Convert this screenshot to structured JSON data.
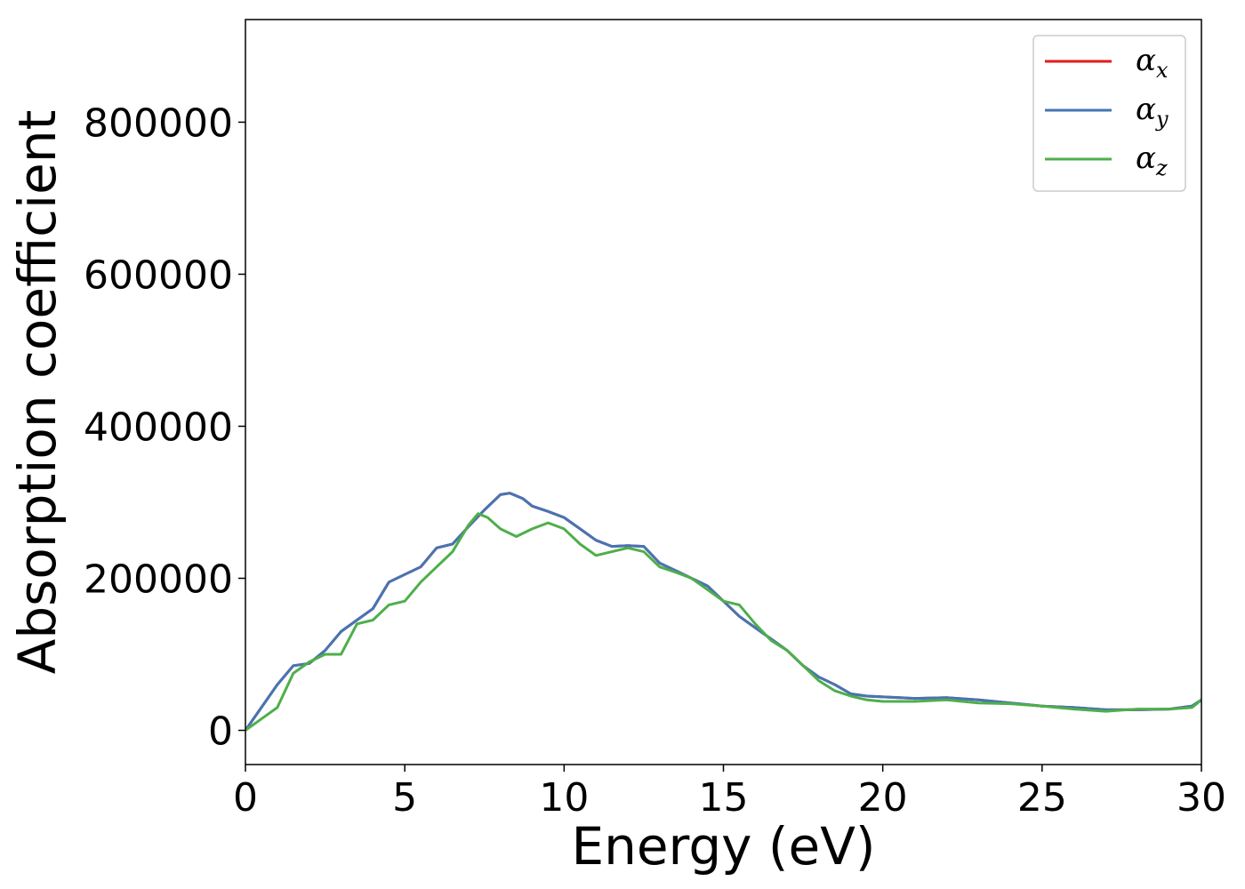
{
  "chart_data": {
    "type": "line",
    "title": "",
    "xlabel": "Energy (eV)",
    "ylabel": "Absorption coefficient",
    "xlim": [
      0,
      30
    ],
    "ylim": [
      -45000,
      935000
    ],
    "xticks": [
      0,
      5,
      10,
      15,
      20,
      25,
      30
    ],
    "xtick_labels": [
      "0",
      "5",
      "10",
      "15",
      "20",
      "25",
      "30"
    ],
    "yticks": [
      0,
      200000,
      400000,
      600000,
      800000
    ],
    "ytick_labels": [
      "0",
      "200000",
      "400000",
      "600000",
      "800000"
    ],
    "grid": false,
    "legend_position": "top-right",
    "series": [
      {
        "name": "α",
        "subscript": "x",
        "color": "#e41a1c",
        "x": [
          0,
          0.5,
          1,
          1.5,
          2,
          2.5,
          3,
          3.5,
          4,
          4.5,
          5,
          5.5,
          6,
          6.5,
          7,
          7.5,
          8,
          8.3,
          8.7,
          9,
          9.5,
          10,
          10.5,
          11,
          11.5,
          12,
          12.5,
          13,
          13.5,
          14,
          14.5,
          15,
          15.5,
          16,
          16.5,
          17,
          17.5,
          18,
          18.5,
          19,
          19.5,
          20,
          21,
          22,
          23,
          24,
          25,
          26,
          27,
          28,
          29,
          29.7,
          30
        ],
        "y": [
          0,
          30000,
          60000,
          85000,
          88000,
          105000,
          130000,
          145000,
          160000,
          195000,
          205000,
          215000,
          240000,
          245000,
          268000,
          290000,
          310000,
          312000,
          305000,
          295000,
          288000,
          280000,
          265000,
          250000,
          242000,
          243000,
          242000,
          220000,
          210000,
          200000,
          190000,
          170000,
          150000,
          135000,
          120000,
          105000,
          85000,
          70000,
          60000,
          48000,
          45000,
          44000,
          42000,
          43000,
          40000,
          36000,
          32000,
          30000,
          27000,
          27000,
          28000,
          32000,
          40000
        ]
      },
      {
        "name": "α",
        "subscript": "y",
        "color": "#4575b4",
        "x": [
          0,
          0.5,
          1,
          1.5,
          2,
          2.5,
          3,
          3.5,
          4,
          4.5,
          5,
          5.5,
          6,
          6.5,
          7,
          7.5,
          8,
          8.3,
          8.7,
          9,
          9.5,
          10,
          10.5,
          11,
          11.5,
          12,
          12.5,
          13,
          13.5,
          14,
          14.5,
          15,
          15.5,
          16,
          16.5,
          17,
          17.5,
          18,
          18.5,
          19,
          19.5,
          20,
          21,
          22,
          23,
          24,
          25,
          26,
          27,
          28,
          29,
          29.7,
          30
        ],
        "y": [
          0,
          30000,
          60000,
          85000,
          88000,
          105000,
          130000,
          145000,
          160000,
          195000,
          205000,
          215000,
          240000,
          245000,
          268000,
          290000,
          310000,
          312000,
          305000,
          295000,
          288000,
          280000,
          265000,
          250000,
          242000,
          243000,
          242000,
          220000,
          210000,
          200000,
          190000,
          170000,
          150000,
          135000,
          120000,
          105000,
          85000,
          70000,
          60000,
          48000,
          45000,
          44000,
          42000,
          43000,
          40000,
          36000,
          32000,
          30000,
          27000,
          27000,
          28000,
          32000,
          40000
        ]
      },
      {
        "name": "α",
        "subscript": "z",
        "color": "#4daf4a",
        "x": [
          0,
          0.5,
          1,
          1.5,
          2,
          2.5,
          3,
          3.5,
          4,
          4.5,
          5,
          5.5,
          6,
          6.5,
          7,
          7.3,
          7.6,
          8,
          8.5,
          9,
          9.5,
          10,
          10.5,
          11,
          11.5,
          12,
          12.5,
          13,
          13.5,
          14,
          14.5,
          15,
          15.5,
          16,
          16.5,
          17,
          17.5,
          18,
          18.5,
          19,
          19.5,
          20,
          21,
          22,
          23,
          24,
          25,
          26,
          27,
          28,
          29,
          29.7,
          30
        ],
        "y": [
          0,
          15000,
          30000,
          75000,
          90000,
          100000,
          100000,
          140000,
          145000,
          165000,
          170000,
          195000,
          215000,
          235000,
          270000,
          285000,
          280000,
          265000,
          255000,
          265000,
          273000,
          265000,
          245000,
          230000,
          235000,
          240000,
          235000,
          215000,
          208000,
          200000,
          185000,
          170000,
          165000,
          140000,
          118000,
          105000,
          85000,
          65000,
          52000,
          45000,
          40000,
          38000,
          38000,
          40000,
          36000,
          35000,
          32000,
          28000,
          25000,
          28000,
          28000,
          30000,
          40000
        ]
      }
    ]
  }
}
